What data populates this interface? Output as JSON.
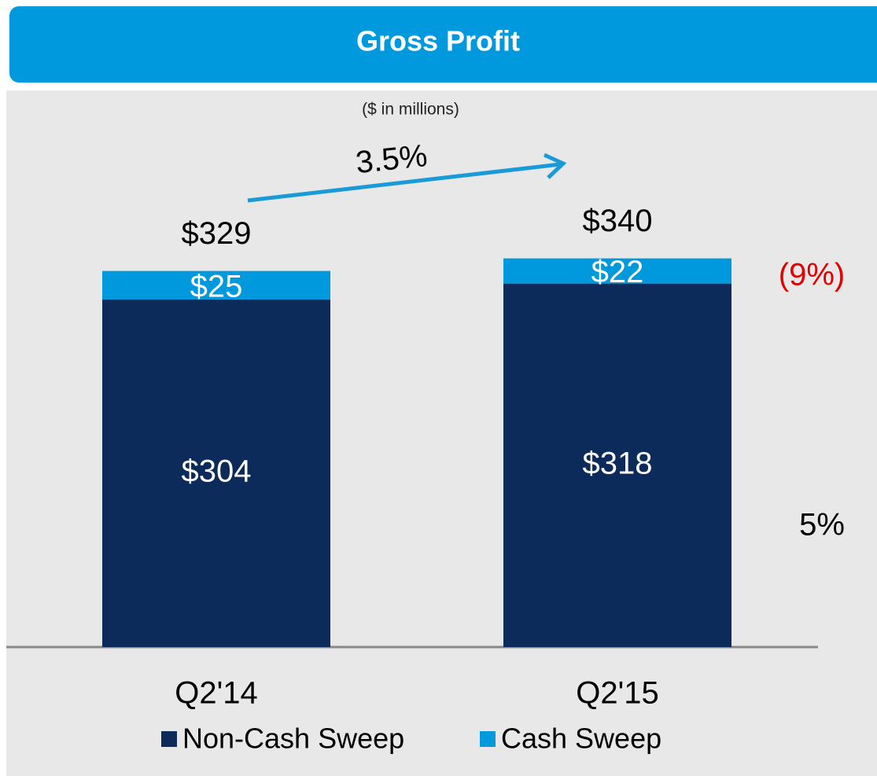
{
  "chart_data": {
    "type": "stacked_bar",
    "title": "Gross Profit",
    "subtitle": "($ in millions)",
    "categories": [
      "Q2'14",
      "Q2'15"
    ],
    "series": [
      {
        "name": "Non-Cash Sweep",
        "color": "#0d2b5a",
        "values": [
          304,
          318
        ],
        "value_labels": [
          "$304",
          "$318"
        ]
      },
      {
        "name": "Cash Sweep",
        "color": "#0099dd",
        "values": [
          25,
          22
        ],
        "value_labels": [
          "$25",
          "$22"
        ]
      }
    ],
    "totals": [
      329,
      340
    ],
    "total_labels": [
      "$329",
      "$340"
    ],
    "annotations": {
      "total_growth": "3.5%",
      "cash_sweep_growth": "(9%)",
      "non_cash_sweep_growth": "5%"
    }
  }
}
